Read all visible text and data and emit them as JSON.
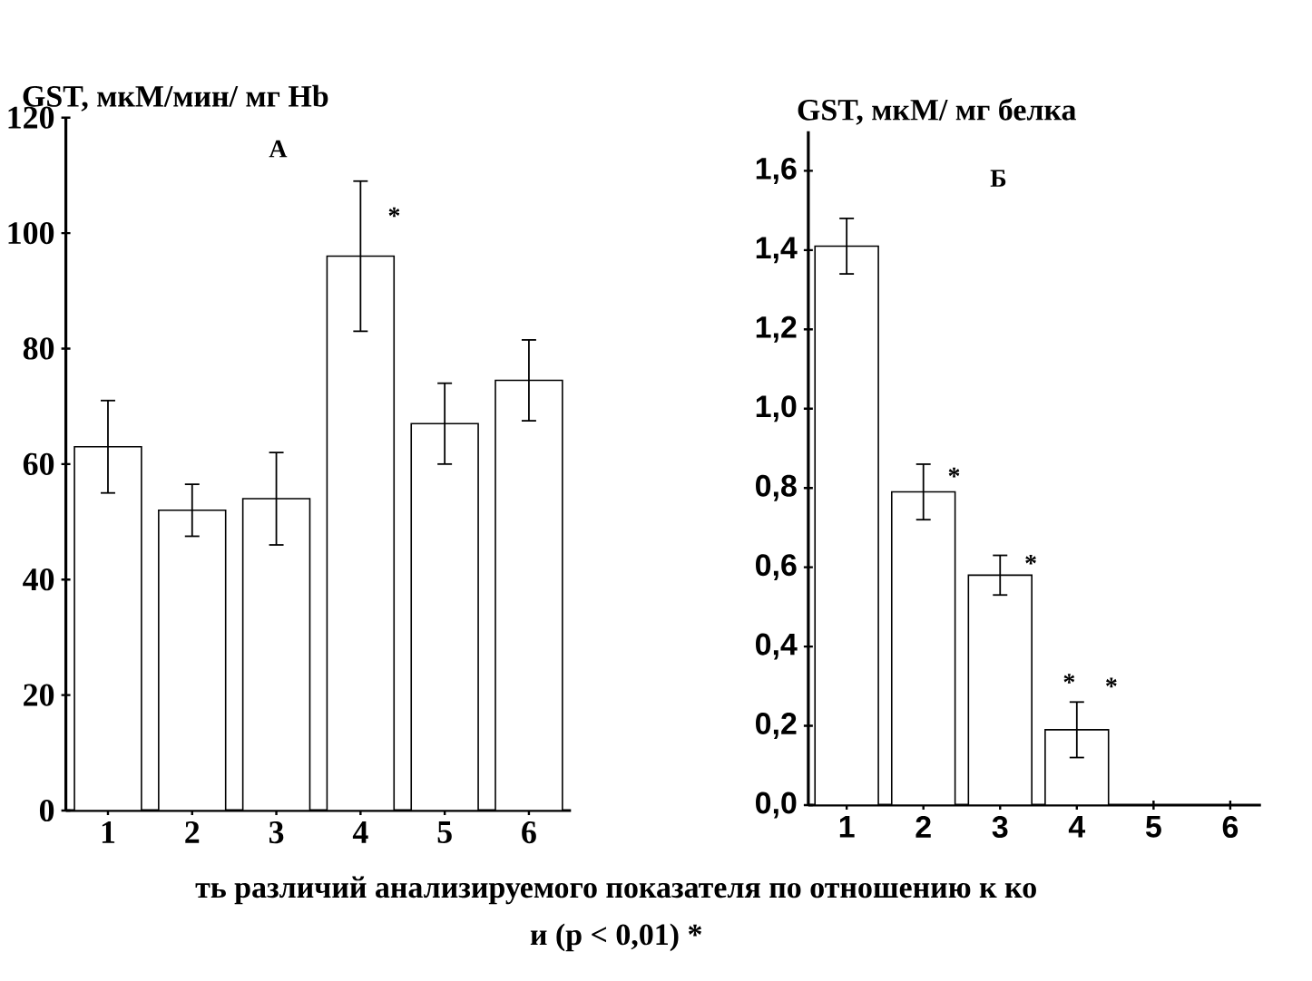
{
  "chart_data": [
    {
      "type": "bar",
      "title": "А",
      "ylabel": "GST, мкМ/мин/ мг Hb",
      "categories": [
        "1",
        "2",
        "3",
        "4",
        "5",
        "6"
      ],
      "values": [
        63,
        52,
        54,
        96,
        67,
        74.5
      ],
      "errors": [
        8,
        4.5,
        8,
        13,
        7,
        7
      ],
      "color": "#ffffff",
      "ylim": [
        0,
        120
      ],
      "yticks": [
        0,
        20,
        40,
        60,
        80,
        100,
        120
      ],
      "annotations": [
        {
          "text": "*",
          "x": "4",
          "y": 103
        },
        "ть различий анализируемого показателя по отношению к ко",
        "и (p < 0,01) *"
      ]
    },
    {
      "type": "bar",
      "title": "Б",
      "ylabel": "GST, мкМ/ мг белка",
      "categories": [
        "1",
        "2",
        "3",
        "4",
        "5",
        "6"
      ],
      "values": [
        1.41,
        0.79,
        0.58,
        0.19,
        null,
        null
      ],
      "errors": [
        0.07,
        0.07,
        0.05,
        0.07,
        null,
        null
      ],
      "color": "#ffffff",
      "ylim": [
        0,
        1.7
      ],
      "yticks": [
        {
          "value": 0,
          "label": "0,0"
        },
        {
          "value": 0.2,
          "label": "0,2"
        },
        {
          "value": 0.4,
          "label": "0,4"
        },
        {
          "value": 0.6,
          "label": "0,6"
        },
        {
          "value": 0.8,
          "label": "0,8"
        },
        {
          "value": 1.0,
          "label": "1,0"
        },
        {
          "value": 1.2,
          "label": "1,2"
        },
        {
          "value": 1.4,
          "label": "1,4"
        },
        {
          "value": 1.6,
          "label": "1,6"
        }
      ],
      "annotations": [
        {
          "text": "*",
          "x": "2",
          "y": 0.83
        },
        {
          "text": "*",
          "x": "3",
          "y": 0.61
        },
        "*",
        "*"
      ]
    }
  ]
}
